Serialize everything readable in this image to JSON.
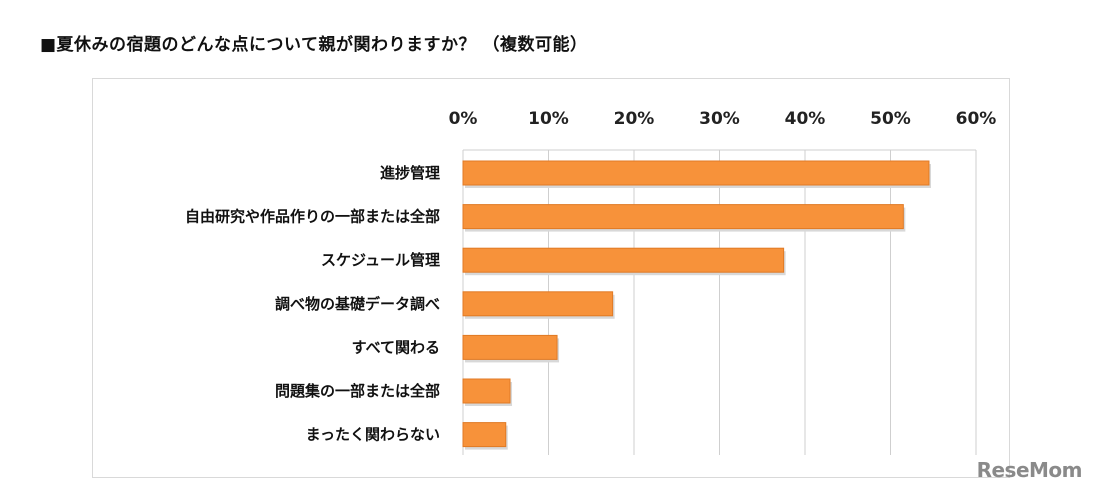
{
  "heading": "■夏休みの宿題のどんな点について親が関わりますか？ （複数可能）",
  "logo": "ReseMom",
  "chart_data": {
    "type": "bar",
    "orientation": "horizontal",
    "categories": [
      "進捗管理",
      "自由研究や作品作りの一部または全部",
      "スケジュール管理",
      "調べ物の基礎データ調べ",
      "すべて関わる",
      "問題集の一部または全部",
      "まったく関わらない"
    ],
    "values": [
      54.5,
      51.5,
      37.5,
      17.5,
      11,
      5.5,
      5
    ],
    "xlim": [
      0,
      60
    ],
    "ticks": [
      "0%",
      "10%",
      "20%",
      "30%",
      "40%",
      "50%",
      "60%"
    ],
    "axis_position": "top",
    "grid": true,
    "bar_color": "#f7923a",
    "bar_edge_color": "#e07a25"
  }
}
